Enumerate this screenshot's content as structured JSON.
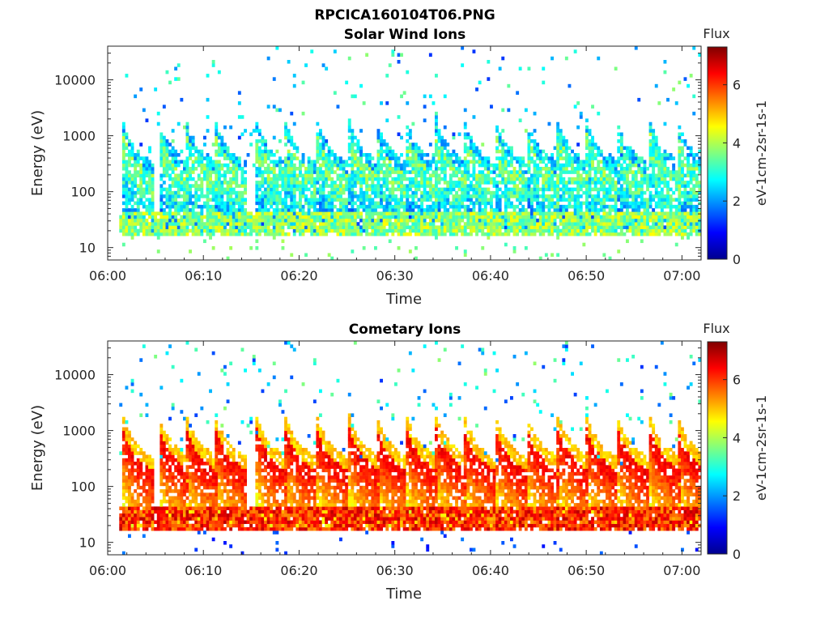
{
  "figure_title": "RPCICA160104T06.PNG",
  "chart_data": [
    {
      "type": "heatmap",
      "title": "Solar Wind Ions",
      "xlabel": "Time",
      "ylabel": "Energy (eV)",
      "x_ticks": [
        "06:00",
        "06:10",
        "06:20",
        "06:30",
        "06:40",
        "06:50",
        "07:00"
      ],
      "x_range": [
        "06:00",
        "07:02"
      ],
      "y_scale": "log",
      "y_ticks": [
        "10",
        "100",
        "1000",
        "10000"
      ],
      "y_range": [
        6,
        40000
      ],
      "colorbar": {
        "title": "Flux",
        "label": "eV-1cm-2sr-1s-1",
        "ticks": [
          "0",
          "2",
          "4",
          "6"
        ],
        "range": [
          0,
          7.3
        ],
        "colormap": "jet"
      },
      "burst_start_minutes": [
        1.5,
        5.3,
        8.2,
        11.2,
        15.5,
        18.5,
        21.8,
        25.2,
        28.0,
        31.2,
        34.3,
        37.2,
        40.5,
        43.8,
        47.0,
        50.0,
        53.2,
        56.6,
        59.5
      ],
      "low_energy_band_eV": [
        20,
        40
      ],
      "peak_flux": 4.6
    },
    {
      "type": "heatmap",
      "title": "Cometary Ions",
      "xlabel": "Time",
      "ylabel": "Energy (eV)",
      "x_ticks": [
        "06:00",
        "06:10",
        "06:20",
        "06:30",
        "06:40",
        "06:50",
        "07:00"
      ],
      "x_range": [
        "06:00",
        "07:02"
      ],
      "y_scale": "log",
      "y_ticks": [
        "10",
        "100",
        "1000",
        "10000"
      ],
      "y_range": [
        6,
        40000
      ],
      "colorbar": {
        "title": "Flux",
        "label": "eV-1cm-2sr-1s-1",
        "ticks": [
          "0",
          "2",
          "4",
          "6"
        ],
        "range": [
          0,
          7.3
        ],
        "colormap": "jet"
      },
      "burst_start_minutes": [
        1.5,
        5.3,
        8.2,
        11.2,
        15.5,
        18.5,
        21.8,
        25.2,
        28.0,
        31.2,
        34.3,
        37.2,
        40.5,
        43.8,
        47.0,
        50.0,
        53.2,
        56.6,
        59.5
      ],
      "low_energy_band_eV": [
        20,
        40
      ],
      "peak_flux": 6.9
    }
  ]
}
